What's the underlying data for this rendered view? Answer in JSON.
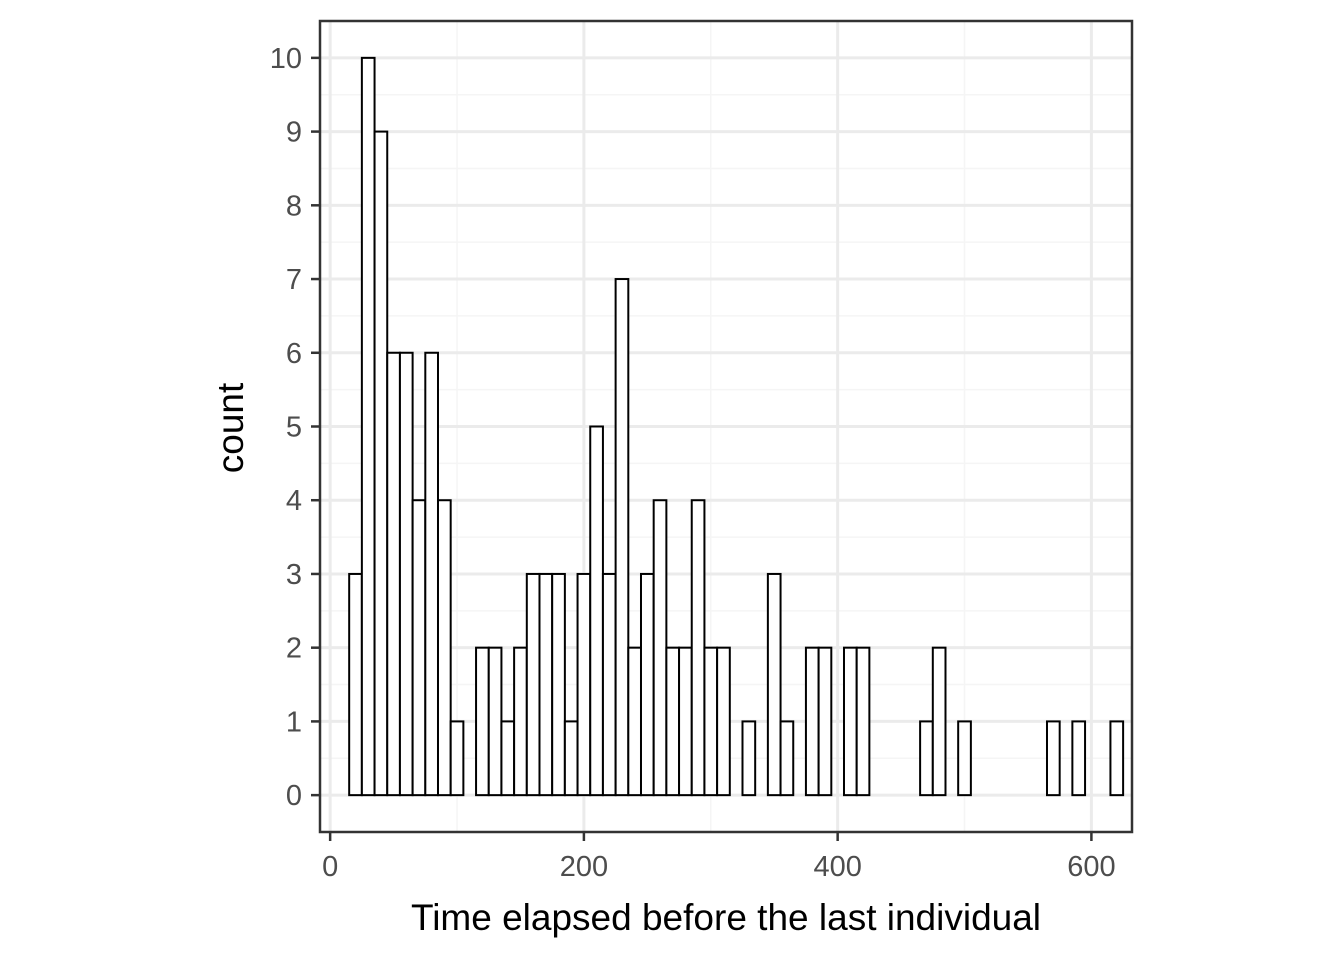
{
  "chart_data": {
    "type": "bar",
    "subtype": "histogram",
    "title": "",
    "xlabel": "Time elapsed before the last individual",
    "ylabel": "count",
    "xlim": [
      -8,
      632
    ],
    "ylim": [
      -0.5,
      10.5
    ],
    "x_ticks": [
      0,
      200,
      400,
      600
    ],
    "y_ticks": [
      0,
      1,
      2,
      3,
      4,
      5,
      6,
      7,
      8,
      9,
      10
    ],
    "x_tick_labels": [
      "0",
      "200",
      "400",
      "600"
    ],
    "y_tick_labels": [
      "0",
      "1",
      "2",
      "3",
      "4",
      "5",
      "6",
      "7",
      "8",
      "9",
      "10"
    ],
    "grid": true,
    "bin_width": 10,
    "bin_start": 15,
    "values": [
      3,
      10,
      9,
      6,
      6,
      4,
      6,
      4,
      1,
      0,
      2,
      2,
      1,
      2,
      3,
      3,
      3,
      1,
      3,
      5,
      3,
      7,
      2,
      3,
      4,
      2,
      2,
      4,
      2,
      2,
      0,
      1,
      0,
      3,
      1,
      0,
      2,
      2,
      0,
      2,
      2,
      0,
      0,
      0,
      0,
      1,
      2,
      0,
      1,
      0,
      0,
      0,
      0,
      0,
      0,
      1,
      0,
      1,
      0,
      0,
      1
    ],
    "colors": {
      "bar_fill": "#ffffff",
      "bar_stroke": "#000000",
      "panel_background": "#ffffff",
      "panel_border": "#333333",
      "grid_major": "#ebebeb",
      "grid_minor": "#f5f5f5"
    }
  }
}
